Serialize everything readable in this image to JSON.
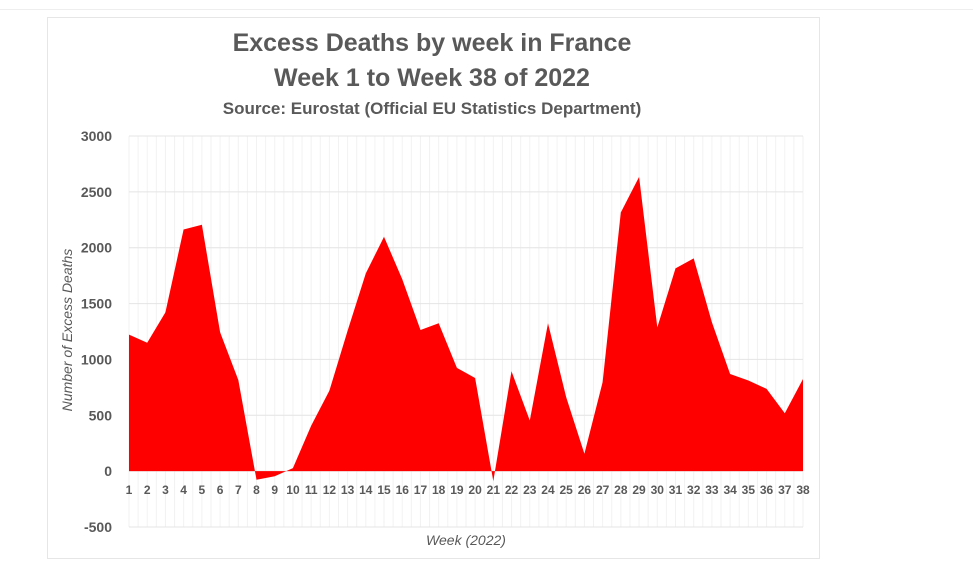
{
  "chart_data": {
    "type": "area",
    "title": "Excess Deaths by week in France",
    "subtitle": "Week 1 to Week 38 of 2022",
    "source": "Source: Eurostat (Official EU Statistics Department)",
    "xlabel": "Week (2022)",
    "ylabel": "Number of Excess Deaths",
    "ylim": [
      -500,
      3000
    ],
    "yticks": [
      3000,
      2500,
      2000,
      1500,
      1000,
      500,
      0,
      -500
    ],
    "grid": true,
    "color": "#ff0000",
    "x": [
      1,
      2,
      3,
      4,
      5,
      6,
      7,
      8,
      9,
      10,
      11,
      12,
      13,
      14,
      15,
      16,
      17,
      18,
      19,
      20,
      21,
      22,
      23,
      24,
      25,
      26,
      27,
      28,
      29,
      30,
      31,
      32,
      33,
      34,
      35,
      36,
      37,
      38
    ],
    "values": [
      1222,
      1150,
      1421,
      2163,
      2205,
      1243,
      816,
      -77,
      -45,
      27,
      408,
      721,
      1257,
      1770,
      2098,
      1719,
      1263,
      1323,
      924,
      834,
      -89,
      894,
      453,
      1323,
      662,
      155,
      796,
      2315,
      2634,
      1287,
      1815,
      1904,
      1332,
      870,
      811,
      736,
      518,
      825
    ]
  }
}
